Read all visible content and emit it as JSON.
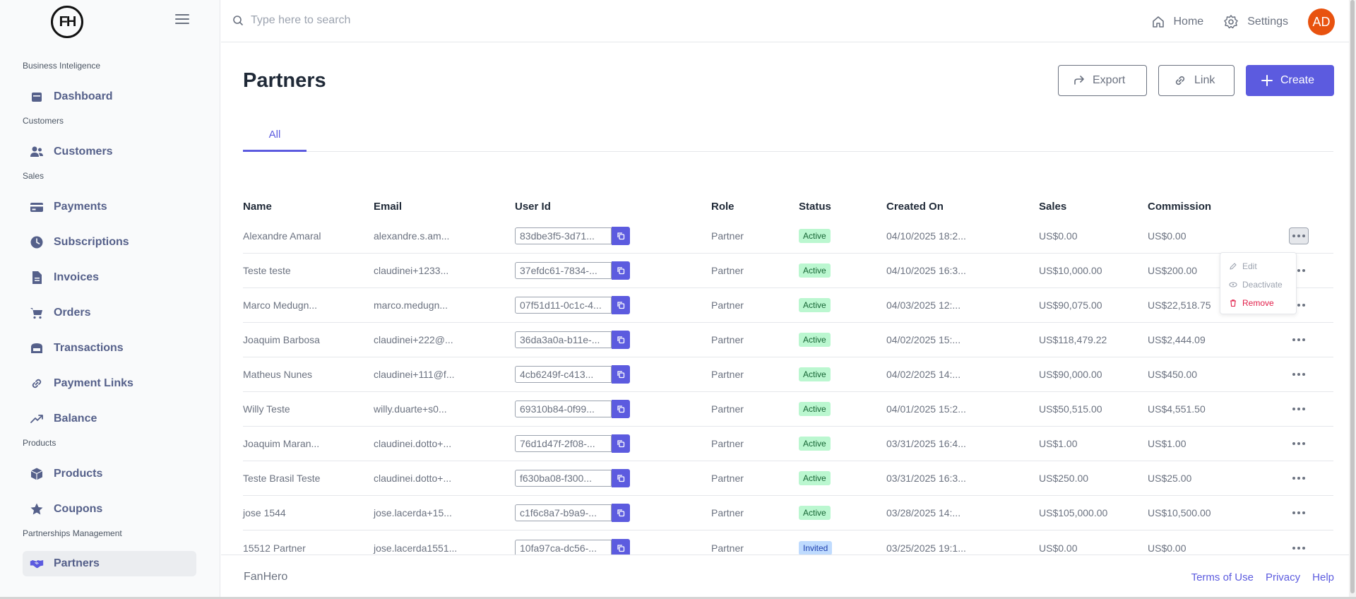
{
  "logo": {
    "text": "FH"
  },
  "sidebar": {
    "sections": [
      {
        "title": "Business Inteligence",
        "items": [
          {
            "label": "Dashboard",
            "icon": "calendar-icon"
          }
        ]
      },
      {
        "title": "Customers",
        "items": [
          {
            "label": "Customers",
            "icon": "users-icon"
          }
        ]
      },
      {
        "title": "Sales",
        "items": [
          {
            "label": "Payments",
            "icon": "credit-card-icon"
          },
          {
            "label": "Subscriptions",
            "icon": "clock-icon"
          },
          {
            "label": "Invoices",
            "icon": "document-icon"
          },
          {
            "label": "Orders",
            "icon": "cart-icon"
          },
          {
            "label": "Transactions",
            "icon": "bank-icon"
          },
          {
            "label": "Payment Links",
            "icon": "link-icon"
          },
          {
            "label": "Balance",
            "icon": "trending-up-icon"
          }
        ]
      },
      {
        "title": "Products",
        "items": [
          {
            "label": "Products",
            "icon": "cube-icon"
          },
          {
            "label": "Coupons",
            "icon": "star-icon"
          }
        ]
      },
      {
        "title": "Partnerships Management",
        "items": [
          {
            "label": "Partners",
            "icon": "handshake-icon",
            "active": true
          }
        ]
      }
    ]
  },
  "topbar": {
    "search_placeholder": "Type here to search",
    "home_label": "Home",
    "settings_label": "Settings",
    "avatar_initials": "AD"
  },
  "page": {
    "title": "Partners",
    "export_label": "Export",
    "link_label": "Link",
    "create_label": "Create",
    "tab_all": "All"
  },
  "table": {
    "headers": {
      "name": "Name",
      "email": "Email",
      "user_id": "User Id",
      "role": "Role",
      "status": "Status",
      "created": "Created On",
      "sales": "Sales",
      "commission": "Commission"
    },
    "rows": [
      {
        "name": "Alexandre Amaral",
        "email": "alexandre.s.am...",
        "user_id": "83dbe3f5-3d71...",
        "role": "Partner",
        "status": "Active",
        "created": "04/10/2025 18:2...",
        "sales": "US$0.00",
        "commission": "US$0.00"
      },
      {
        "name": "Teste teste",
        "email": "claudinei+1233...",
        "user_id": "37efdc61-7834-...",
        "role": "Partner",
        "status": "Active",
        "created": "04/10/2025 16:3...",
        "sales": "US$10,000.00",
        "commission": "US$200.00"
      },
      {
        "name": "Marco Medugn...",
        "email": "marco.medugn...",
        "user_id": "07f51d11-0c1c-4...",
        "role": "Partner",
        "status": "Active",
        "created": "04/03/2025 12:...",
        "sales": "US$90,075.00",
        "commission": "US$22,518.75"
      },
      {
        "name": "Joaquim Barbosa",
        "email": "claudinei+222@...",
        "user_id": "36da3a0a-b11e-...",
        "role": "Partner",
        "status": "Active",
        "created": "04/02/2025 15:...",
        "sales": "US$118,479.22",
        "commission": "US$2,444.09"
      },
      {
        "name": "Matheus Nunes",
        "email": "claudinei+111@f...",
        "user_id": "4cb6249f-c413...",
        "role": "Partner",
        "status": "Active",
        "created": "04/02/2025 14:...",
        "sales": "US$90,000.00",
        "commission": "US$450.00"
      },
      {
        "name": "Willy Teste",
        "email": "willy.duarte+s0...",
        "user_id": "69310b84-0f99...",
        "role": "Partner",
        "status": "Active",
        "created": "04/01/2025 15:2...",
        "sales": "US$50,515.00",
        "commission": "US$4,551.50"
      },
      {
        "name": "Joaquim Maran...",
        "email": "claudinei.dotto+...",
        "user_id": "76d1d47f-2f08-...",
        "role": "Partner",
        "status": "Active",
        "created": "03/31/2025 16:4...",
        "sales": "US$1.00",
        "commission": "US$1.00"
      },
      {
        "name": "Teste Brasil Teste",
        "email": "claudinei.dotto+...",
        "user_id": "f630ba08-f300...",
        "role": "Partner",
        "status": "Active",
        "created": "03/31/2025 16:3...",
        "sales": "US$250.00",
        "commission": "US$25.00"
      },
      {
        "name": "jose 1544",
        "email": "jose.lacerda+15...",
        "user_id": "c1f6c8a7-b9a9-...",
        "role": "Partner",
        "status": "Active",
        "created": "03/28/2025 14:...",
        "sales": "US$105,000.00",
        "commission": "US$10,500.00"
      },
      {
        "name": "15512 Partner",
        "email": "jose.lacerda1551...",
        "user_id": "10fa97ca-dc56-...",
        "role": "Partner",
        "status": "Invited",
        "created": "03/25/2025 19:1...",
        "sales": "US$0.00",
        "commission": "US$0.00"
      }
    ]
  },
  "row_menu": {
    "edit": "Edit",
    "deactivate": "Deactivate",
    "remove": "Remove"
  },
  "footer": {
    "brand": "FanHero",
    "terms": "Terms of Use",
    "privacy": "Privacy",
    "help": "Help"
  }
}
